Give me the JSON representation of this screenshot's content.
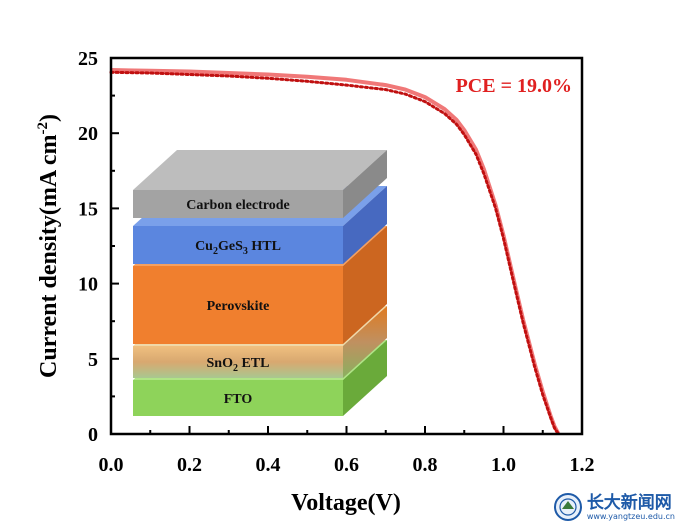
{
  "chart_data": {
    "type": "line",
    "xlabel": "Voltage(V)",
    "ylabel_prefix": "Current density(mA cm",
    "ylabel_sup": "-2",
    "ylabel_suffix": ")",
    "xlim": [
      0.0,
      1.2
    ],
    "ylim": [
      0,
      25
    ],
    "x_ticks": [
      "0.0",
      "0.2",
      "0.4",
      "0.6",
      "0.8",
      "1.0",
      "1.2"
    ],
    "y_ticks": [
      "0",
      "5",
      "10",
      "15",
      "20",
      "25"
    ],
    "grid": false,
    "annotation": "PCE = 19.0%",
    "series": [
      {
        "style": "solid",
        "color": "#f07878",
        "x": [
          0.0,
          0.1,
          0.2,
          0.3,
          0.4,
          0.5,
          0.6,
          0.7,
          0.75,
          0.8,
          0.85,
          0.88,
          0.9,
          0.93,
          0.95,
          0.98,
          1.0,
          1.03,
          1.05,
          1.08,
          1.1,
          1.12,
          1.13,
          1.14
        ],
        "y": [
          24.2,
          24.15,
          24.1,
          24.0,
          23.9,
          23.75,
          23.55,
          23.2,
          22.9,
          22.4,
          21.6,
          20.9,
          20.2,
          18.9,
          17.6,
          15.2,
          13.2,
          9.8,
          7.6,
          4.6,
          2.8,
          1.2,
          0.5,
          0.0
        ]
      },
      {
        "style": "dotted",
        "color": "#c01010",
        "x": [
          0.0,
          0.1,
          0.2,
          0.3,
          0.4,
          0.5,
          0.6,
          0.7,
          0.75,
          0.8,
          0.85,
          0.88,
          0.9,
          0.93,
          0.95,
          0.98,
          1.0,
          1.03,
          1.05,
          1.08,
          1.1,
          1.12,
          1.13,
          1.14
        ],
        "y": [
          24.05,
          24.0,
          23.9,
          23.8,
          23.65,
          23.45,
          23.2,
          22.9,
          22.6,
          22.1,
          21.3,
          20.6,
          19.9,
          18.6,
          17.3,
          15.0,
          13.0,
          9.6,
          7.4,
          4.4,
          2.6,
          1.1,
          0.4,
          0.0
        ]
      }
    ]
  },
  "inset": {
    "layers": [
      {
        "label": "Carbon electrode",
        "front": "#a3a3a3",
        "side": "#8a8a8a",
        "top": "#bdbdbd"
      },
      {
        "label_main": "Cu",
        "label_sub1": "2",
        "label_mid": "GeS",
        "label_sub2": "3",
        "label_end": " HTL",
        "front": "#5b86df",
        "side": "#4769c0",
        "top": "#7aa0ea"
      },
      {
        "label": "Perovskite",
        "front": "#f07f2e",
        "side": "#cc6620",
        "top": "#f5a060"
      },
      {
        "label_main": "SnO",
        "label_sub1": "2",
        "label_end": " ETL",
        "front": "#e0b070",
        "side": "#c89050",
        "top": "#f0d8a8"
      },
      {
        "label": "FTO",
        "front": "#8ed35a",
        "side": "#6aaa3a",
        "top": "#b0e585"
      }
    ]
  },
  "watermark": {
    "name": "长大新闻网",
    "url": "www.yangtzeu.edu.cn"
  }
}
